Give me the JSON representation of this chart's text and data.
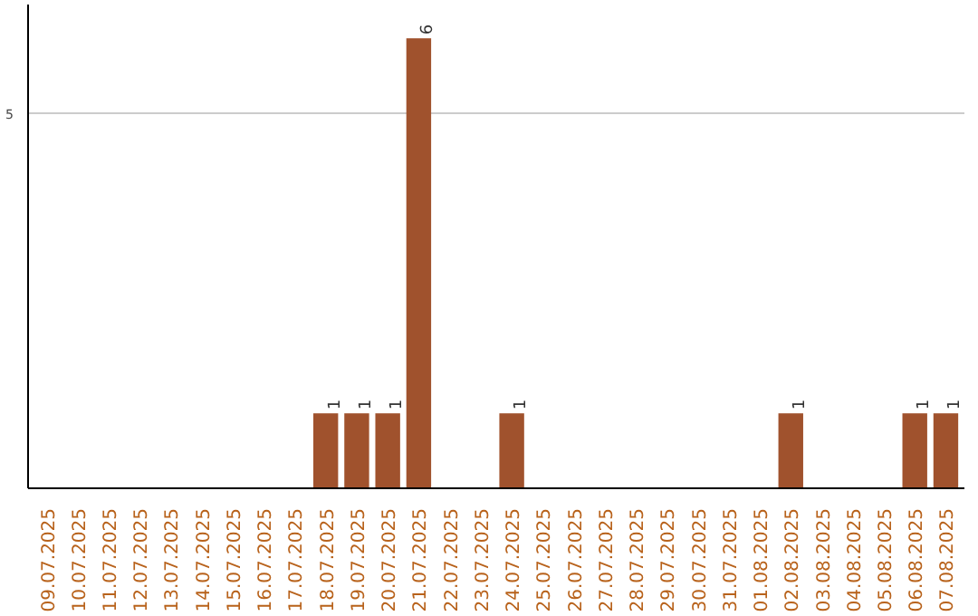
{
  "chart_data": {
    "type": "bar",
    "categories": [
      "09.07.2025",
      "10.07.2025",
      "11.07.2025",
      "12.07.2025",
      "13.07.2025",
      "14.07.2025",
      "15.07.2025",
      "16.07.2025",
      "17.07.2025",
      "18.07.2025",
      "19.07.2025",
      "20.07.2025",
      "21.07.2025",
      "22.07.2025",
      "23.07.2025",
      "24.07.2025",
      "25.07.2025",
      "26.07.2025",
      "27.07.2025",
      "28.07.2025",
      "29.07.2025",
      "30.07.2025",
      "31.07.2025",
      "01.08.2025",
      "02.08.2025",
      "03.08.2025",
      "04.08.2025",
      "05.08.2025",
      "06.08.2025",
      "07.08.2025"
    ],
    "values": [
      0,
      0,
      0,
      0,
      0,
      0,
      0,
      0,
      0,
      1,
      1,
      1,
      6,
      0,
      0,
      1,
      0,
      0,
      0,
      0,
      0,
      0,
      0,
      0,
      1,
      0,
      0,
      0,
      1,
      1
    ],
    "value_labels": [
      null,
      null,
      null,
      null,
      null,
      null,
      null,
      null,
      null,
      "1",
      "1",
      "1",
      "6",
      null,
      null,
      "1",
      null,
      null,
      null,
      null,
      null,
      null,
      null,
      null,
      "1",
      null,
      null,
      null,
      "1",
      "1"
    ],
    "color": "#a0522d",
    "ylim": [
      0,
      6.45
    ],
    "yticks": [
      5
    ],
    "grid": "y"
  }
}
